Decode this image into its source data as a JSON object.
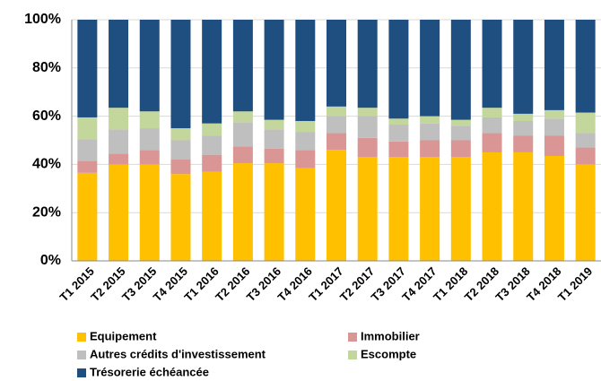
{
  "chart_data": {
    "type": "stacked_bar",
    "categories": [
      "T1 2015",
      "T2 2015",
      "T3 2015",
      "T4 2015",
      "T1 2016",
      "T2 2016",
      "T3 2016",
      "T4 2016",
      "T1 2017",
      "T2 2017",
      "T3 2017",
      "T4 2017",
      "T1 2018",
      "T2 2018",
      "T3 2018",
      "T4 2018",
      "T1 2019"
    ],
    "series": [
      {
        "name": "Equipement",
        "color": "#FFC000",
        "values": [
          36.5,
          40,
          40,
          36,
          37,
          40.5,
          40.5,
          38.5,
          46,
          43,
          43,
          43,
          43,
          45,
          45,
          43.5,
          40
        ]
      },
      {
        "name": "Immobilier",
        "color": "#D99694",
        "values": [
          5,
          4.5,
          6,
          6,
          7,
          7,
          6,
          7.5,
          7,
          8,
          6.5,
          7,
          7,
          8,
          7,
          8.5,
          7
        ]
      },
      {
        "name": "Autres crédits d'investissement",
        "color": "#BFBFBF",
        "values": [
          9,
          10,
          9,
          8,
          8,
          10,
          8,
          7.5,
          7,
          9,
          7,
          7,
          6,
          6.5,
          6,
          7,
          6
        ]
      },
      {
        "name": "Escompte",
        "color": "#C3D69B",
        "values": [
          9,
          9,
          7,
          5,
          5,
          4.5,
          4,
          4.5,
          4,
          3.5,
          2.5,
          3,
          2.5,
          4,
          3,
          3.5,
          8.5
        ]
      },
      {
        "name": "Trésorerie échéancée",
        "color": "#1F4E80",
        "values": [
          40.5,
          36.5,
          38,
          45,
          43,
          38,
          41.5,
          42,
          36,
          36.5,
          41,
          40,
          41.5,
          36.5,
          39,
          37.5,
          38.5
        ]
      }
    ],
    "ylim": [
      0,
      100
    ],
    "yticks": [
      {
        "value": 0,
        "label": "0%"
      },
      {
        "value": 20,
        "label": "20%"
      },
      {
        "value": 40,
        "label": "40%"
      },
      {
        "value": 60,
        "label": "60%"
      },
      {
        "value": 80,
        "label": "80%"
      },
      {
        "value": 100,
        "label": "100%"
      }
    ],
    "grid": true
  }
}
